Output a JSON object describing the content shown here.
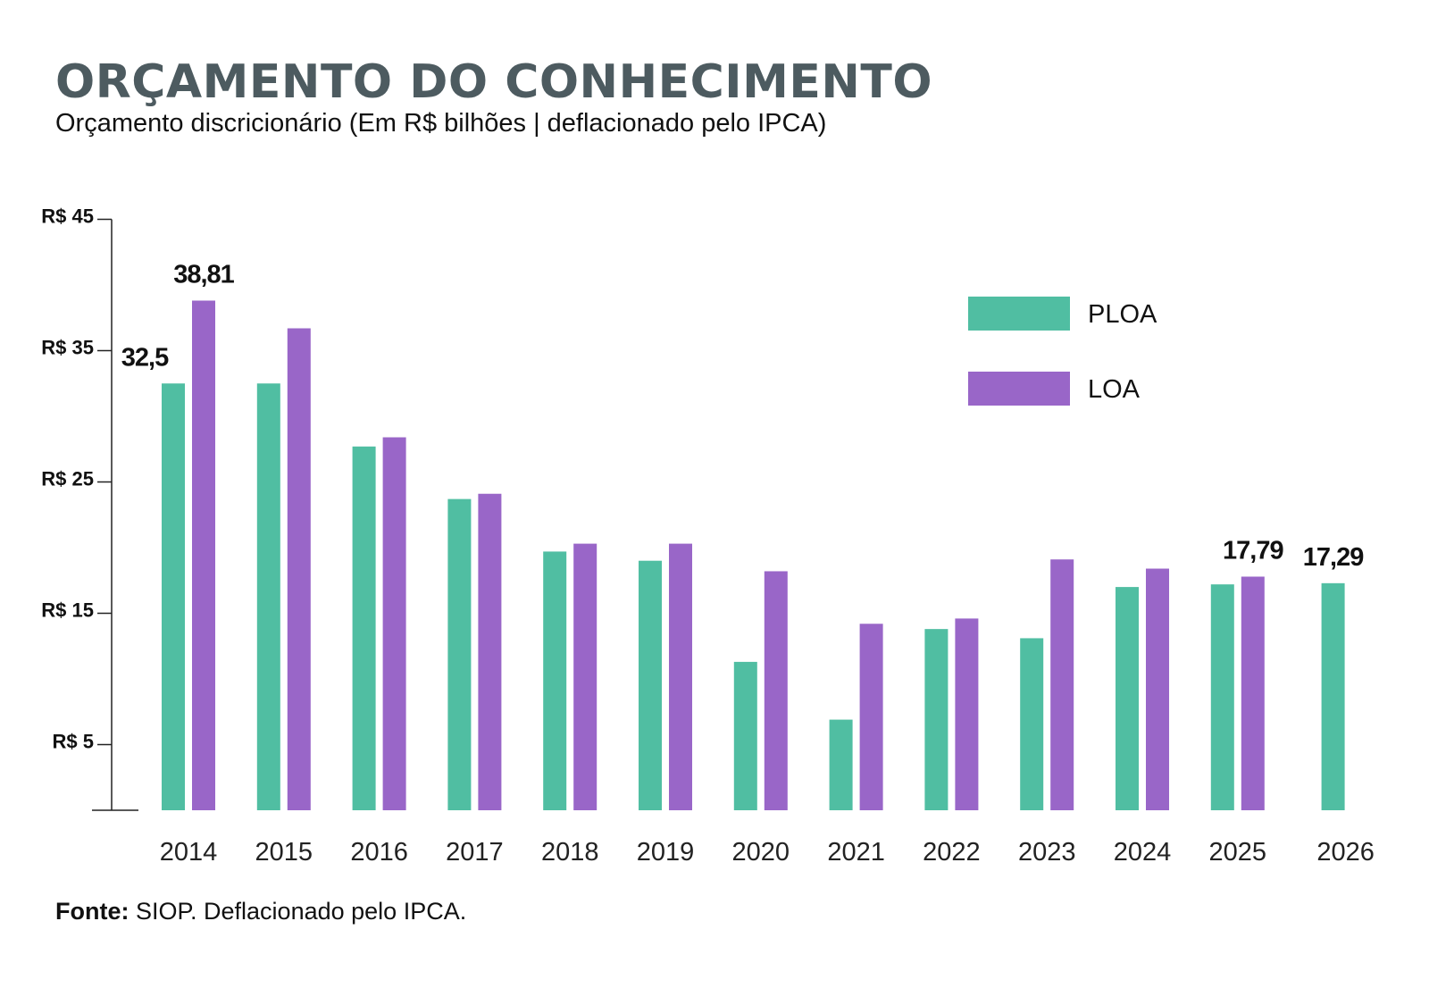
{
  "title": "ORÇAMENTO DO CONHECIMENTO",
  "subtitle": "Orçamento discricionário (Em R$ bilhões | deflacionado pelo IPCA)",
  "source_label": "Fonte:",
  "source_text": " SIOP. Deflacionado pelo IPCA.",
  "chart_data": {
    "type": "bar",
    "title": "ORÇAMENTO DO CONHECIMENTO",
    "subtitle": "Orçamento discricionário (Em R$ bilhões | deflacionado pelo IPCA)",
    "categories": [
      "2014",
      "2015",
      "2016",
      "2017",
      "2018",
      "2019",
      "2020",
      "2021",
      "2022",
      "2023",
      "2024",
      "2025",
      "2026"
    ],
    "series": [
      {
        "name": "PLOA",
        "color": "#50bea2",
        "values": [
          32.5,
          32.5,
          27.7,
          23.7,
          19.7,
          19.0,
          11.3,
          6.9,
          13.8,
          13.1,
          17.0,
          17.2,
          17.29
        ]
      },
      {
        "name": "LOA",
        "color": "#9966c8",
        "values": [
          38.81,
          36.7,
          28.4,
          24.1,
          20.3,
          20.3,
          18.2,
          14.2,
          14.6,
          19.1,
          18.4,
          17.79,
          null
        ]
      }
    ],
    "y_ticks": [
      5,
      15,
      25,
      35,
      45
    ],
    "y_tick_labels": [
      "R$ 5",
      "R$ 15",
      "R$ 25",
      "R$ 35",
      "R$ 45"
    ],
    "ylim": [
      0,
      45
    ],
    "data_labels": [
      {
        "category": "2014",
        "series": "PLOA",
        "text": "32,5"
      },
      {
        "category": "2014",
        "series": "LOA",
        "text": "38,81"
      },
      {
        "category": "2025",
        "series": "LOA",
        "text": "17,79"
      },
      {
        "category": "2026",
        "series": "PLOA",
        "text": "17,29"
      }
    ],
    "legend_position": "top-right",
    "grid": false,
    "xlabel": "",
    "ylabel": ""
  }
}
